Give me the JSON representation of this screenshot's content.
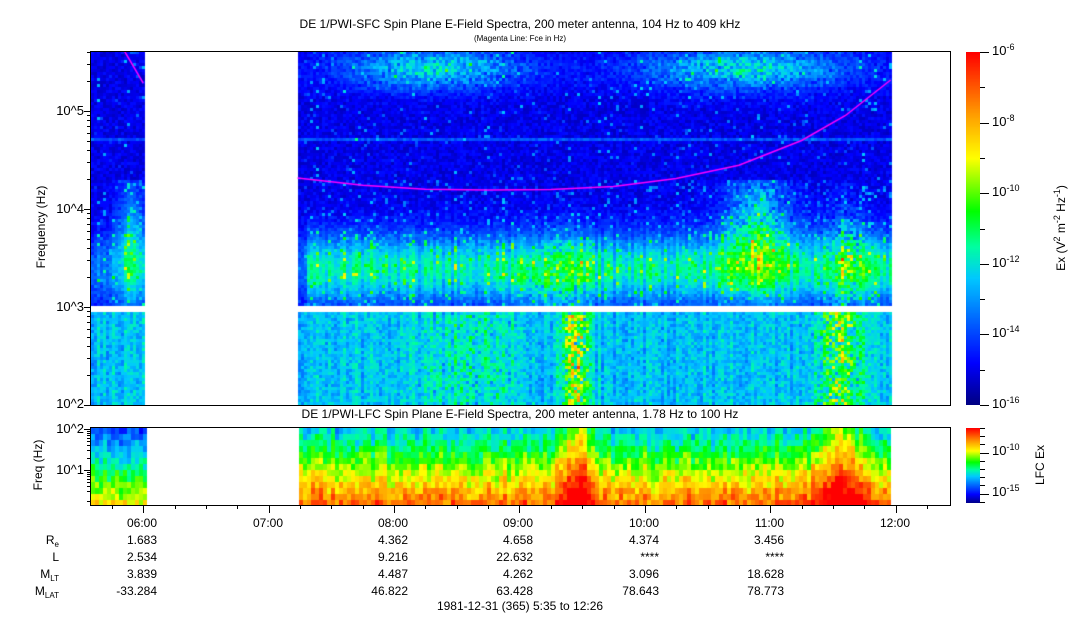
{
  "chart_data": [
    {
      "type": "heatmap",
      "title": "DE 1/PWI-SFC  Spin Plane E-Field Spectra, 200 meter antenna, 104 Hz to 409 kHz",
      "subtitle": "(Magenta Line: Fce in Hz)",
      "xlabel": "",
      "ylabel": "Frequency (Hz)",
      "yscale": "log",
      "ylim": [
        100,
        409000
      ],
      "ytick_labels": [
        "10^2",
        "10^3",
        "10^4",
        "10^5"
      ],
      "xlim": [
        "05:35",
        "12:26"
      ],
      "data_intervals": [
        [
          "05:35",
          "06:01"
        ],
        [
          "07:14",
          "11:58"
        ]
      ],
      "colorbar": {
        "label": "Ex (V^2 m^-2 Hz^-1)",
        "scale": "log",
        "range": [
          1e-16,
          1e-06
        ],
        "tick_labels": [
          "-6",
          "-8",
          "-10",
          "-12",
          "-14",
          "-16"
        ]
      },
      "fce_line": {
        "name": "Fce",
        "color": "#ff00ff",
        "t_hours": [
          5.85,
          6.0,
          7.23,
          7.75,
          8.25,
          8.75,
          9.25,
          9.75,
          10.25,
          10.75,
          11.25,
          11.6,
          11.96
        ],
        "freq_hz": [
          409000,
          193000,
          20700,
          17500,
          15900,
          15600,
          15800,
          17000,
          20500,
          28000,
          50000,
          90000,
          207000
        ]
      }
    },
    {
      "type": "heatmap",
      "title": "DE 1/PWI-LFC  Spin Plane E-Field Spectra, 200 meter antenna, 1.78 Hz to 100 Hz",
      "ylabel": "Freq (Hz)",
      "yscale": "log",
      "ylim": [
        1.78,
        100
      ],
      "ytick_labels": [
        "10^1",
        "10^2"
      ],
      "data_intervals": [
        [
          "05:35",
          "06:01"
        ],
        [
          "07:14",
          "11:58"
        ]
      ],
      "colorbar": {
        "label": "LFC Ex",
        "scale": "log",
        "range": [
          2e-16,
          2.5e-07
        ],
        "tick_labels": [
          "-10",
          "-15"
        ]
      }
    }
  ],
  "xaxis": {
    "tick_labels": [
      "06:00",
      "07:00",
      "08:00",
      "09:00",
      "10:00",
      "11:00",
      "12:00"
    ],
    "rows": [
      {
        "label": "R",
        "sub": "e",
        "values": [
          "1.683",
          "",
          "4.362",
          "4.658",
          "4.374",
          "3.456",
          ""
        ]
      },
      {
        "label": "L",
        "sub": "",
        "values": [
          "2.534",
          "",
          "9.216",
          "22.632",
          "****",
          "****",
          ""
        ]
      },
      {
        "label": "M",
        "sub": "LT",
        "values": [
          "3.839",
          "",
          "4.487",
          "4.262",
          "3.096",
          "18.628",
          ""
        ]
      },
      {
        "label": "M",
        "sub": "LAT",
        "values": [
          "-33.284",
          "",
          "46.822",
          "63.428",
          "78.643",
          "78.773",
          ""
        ]
      }
    ],
    "footer": "1981-12-31 (365) 5:35 to 12:26"
  },
  "labels": {
    "ten": "10"
  },
  "colors": {
    "fce": "#ff00ff",
    "axis": "#000000"
  }
}
